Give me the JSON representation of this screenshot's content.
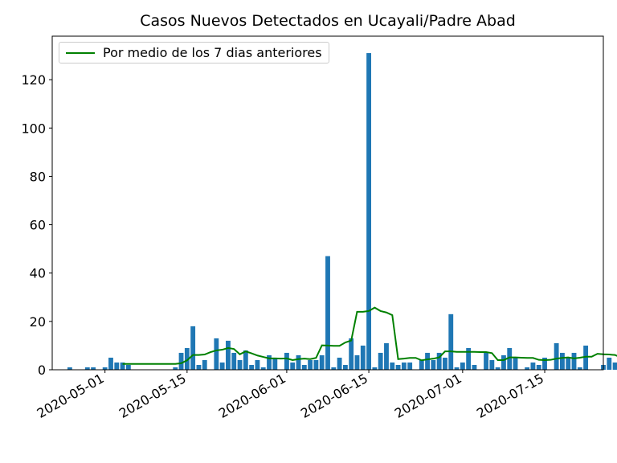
{
  "chart_data": {
    "type": "bar",
    "title": "Casos Nuevos Detectados en Ucayali/Padre Abad",
    "xlabel": "",
    "ylabel": "",
    "x_start": "2020-04-22",
    "xlim": [
      "2020-04-22",
      "2020-07-25"
    ],
    "ylim": [
      0,
      138
    ],
    "y_ticks": [
      0,
      20,
      40,
      60,
      80,
      100,
      120
    ],
    "x_ticks": [
      "2020-05-01",
      "2020-05-15",
      "2020-06-01",
      "2020-06-15",
      "2020-07-01",
      "2020-07-15"
    ],
    "grid": false,
    "legend_position": "top-left",
    "bar_color": "#1f77b4",
    "line_color": "#008000",
    "series": [
      {
        "kind": "bar",
        "values": [
          0,
          0,
          0,
          1,
          0,
          0,
          1,
          1,
          0,
          1,
          5,
          3,
          3,
          2,
          0,
          0,
          0,
          0,
          0,
          0,
          0,
          1,
          7,
          9,
          18,
          2,
          4,
          0,
          13,
          3,
          12,
          7,
          4,
          8,
          2,
          4,
          1,
          6,
          5,
          0,
          7,
          3,
          6,
          2,
          4,
          4,
          6,
          47,
          1,
          5,
          2,
          13,
          6,
          10,
          131,
          1,
          7,
          11,
          3,
          2,
          3,
          3,
          0,
          4,
          7,
          4,
          7,
          5,
          23,
          1,
          3,
          9,
          2,
          0,
          7,
          4,
          1,
          6,
          9,
          5,
          0,
          1,
          3,
          2,
          5,
          0,
          11,
          7,
          5,
          7,
          1,
          10,
          0,
          0,
          2,
          5,
          3,
          3
        ]
      },
      {
        "kind": "line",
        "name": "Por medio de los 7 dias anteriores",
        "start_index": 12,
        "values": [
          2.4,
          2.4,
          2.4,
          2.4,
          2.4,
          2.4,
          2.4,
          2.4,
          2.4,
          2.4,
          2.7,
          3.9,
          6.1,
          6.1,
          6.3,
          7.3,
          8.0,
          8.3,
          9.0,
          8.6,
          6.4,
          7.6,
          6.8,
          5.9,
          5.3,
          4.7,
          4.7,
          4.6,
          4.7,
          4.0,
          4.4,
          4.6,
          4.4,
          4.9,
          10.1,
          10.0,
          9.9,
          9.9,
          11.3,
          12.1,
          24.0,
          24.0,
          24.3,
          25.7,
          24.3,
          23.7,
          22.6,
          4.4,
          4.6,
          4.9,
          4.9,
          3.9,
          4.3,
          4.6,
          5.1,
          7.6,
          7.6,
          7.4,
          7.4,
          7.4,
          7.4,
          7.3,
          7.3,
          6.9,
          4.0,
          4.0,
          5.1,
          5.1,
          5.0,
          4.9,
          4.9,
          4.1,
          4.0,
          4.1,
          4.6,
          4.9,
          5.1,
          4.7,
          5.0,
          5.4,
          5.4,
          6.6,
          6.4,
          6.3,
          6.1,
          5.1,
          4.6,
          4.3
        ]
      }
    ]
  }
}
